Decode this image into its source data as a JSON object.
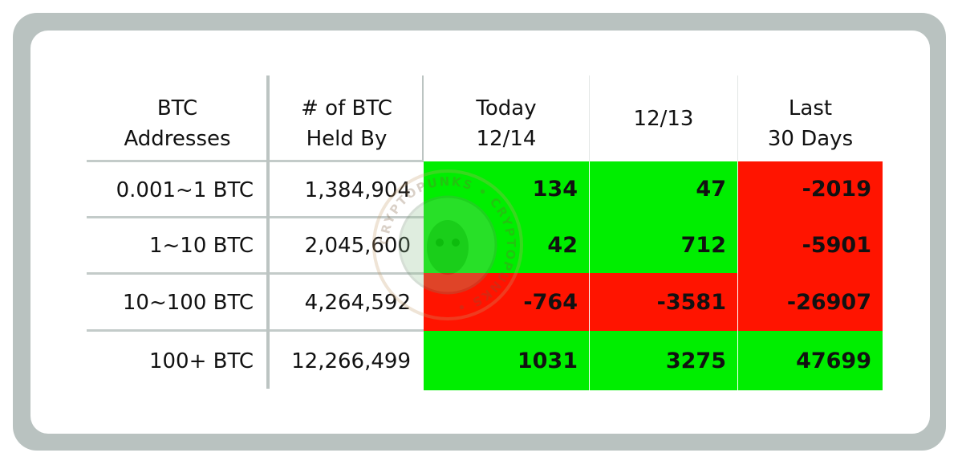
{
  "headers": {
    "addresses": [
      "BTC",
      "Addresses"
    ],
    "held_by": [
      "# of BTC",
      "Held By"
    ],
    "today": [
      "Today",
      "12/14"
    ],
    "prev_day": [
      "12/13"
    ],
    "last30": [
      "Last",
      "30 Days"
    ]
  },
  "rows": [
    {
      "label": "0.001~1 BTC",
      "held": "1,384,904",
      "today": "134",
      "prev": "47",
      "last30": "-2019"
    },
    {
      "label": "1~10 BTC",
      "held": "2,045,600",
      "today": "42",
      "prev": "712",
      "last30": "-5901"
    },
    {
      "label": "10~100 BTC",
      "held": "4,264,592",
      "today": "-764",
      "prev": "-3581",
      "last30": "-26907"
    },
    {
      "label": "100+ BTC",
      "held": "12,266,499",
      "today": "1031",
      "prev": "3275",
      "last30": "47699"
    }
  ],
  "colors": {
    "positive": "#00ee00",
    "negative": "#ff1400",
    "frame": "#b9c2c0"
  },
  "watermark_text": "CRYPTOPUNKS"
}
